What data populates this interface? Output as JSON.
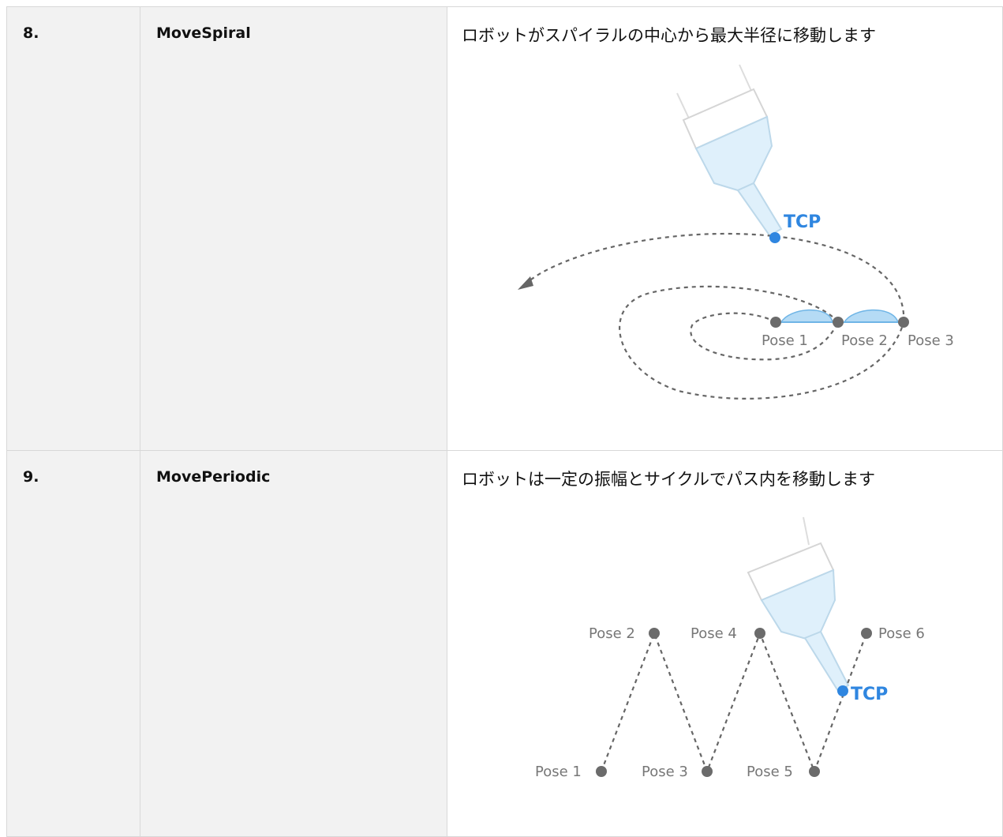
{
  "table": {
    "rows": [
      {
        "number": "8.",
        "name": "MoveSpiral",
        "description": "ロボットがスパイラルの中心から最大半径に移動します",
        "diagram": {
          "tcp": "TCP",
          "poses": [
            "Pose 1",
            "Pose 2",
            "Pose 3"
          ]
        }
      },
      {
        "number": "9.",
        "name": "MovePeriodic",
        "description": "ロボットは一定の振幅とサイクルでパス内を移動します",
        "diagram": {
          "tcp": "TCP",
          "poses": [
            "Pose 1",
            "Pose 2",
            "Pose 3",
            "Pose 4",
            "Pose 5",
            "Pose 6"
          ]
        }
      }
    ]
  }
}
